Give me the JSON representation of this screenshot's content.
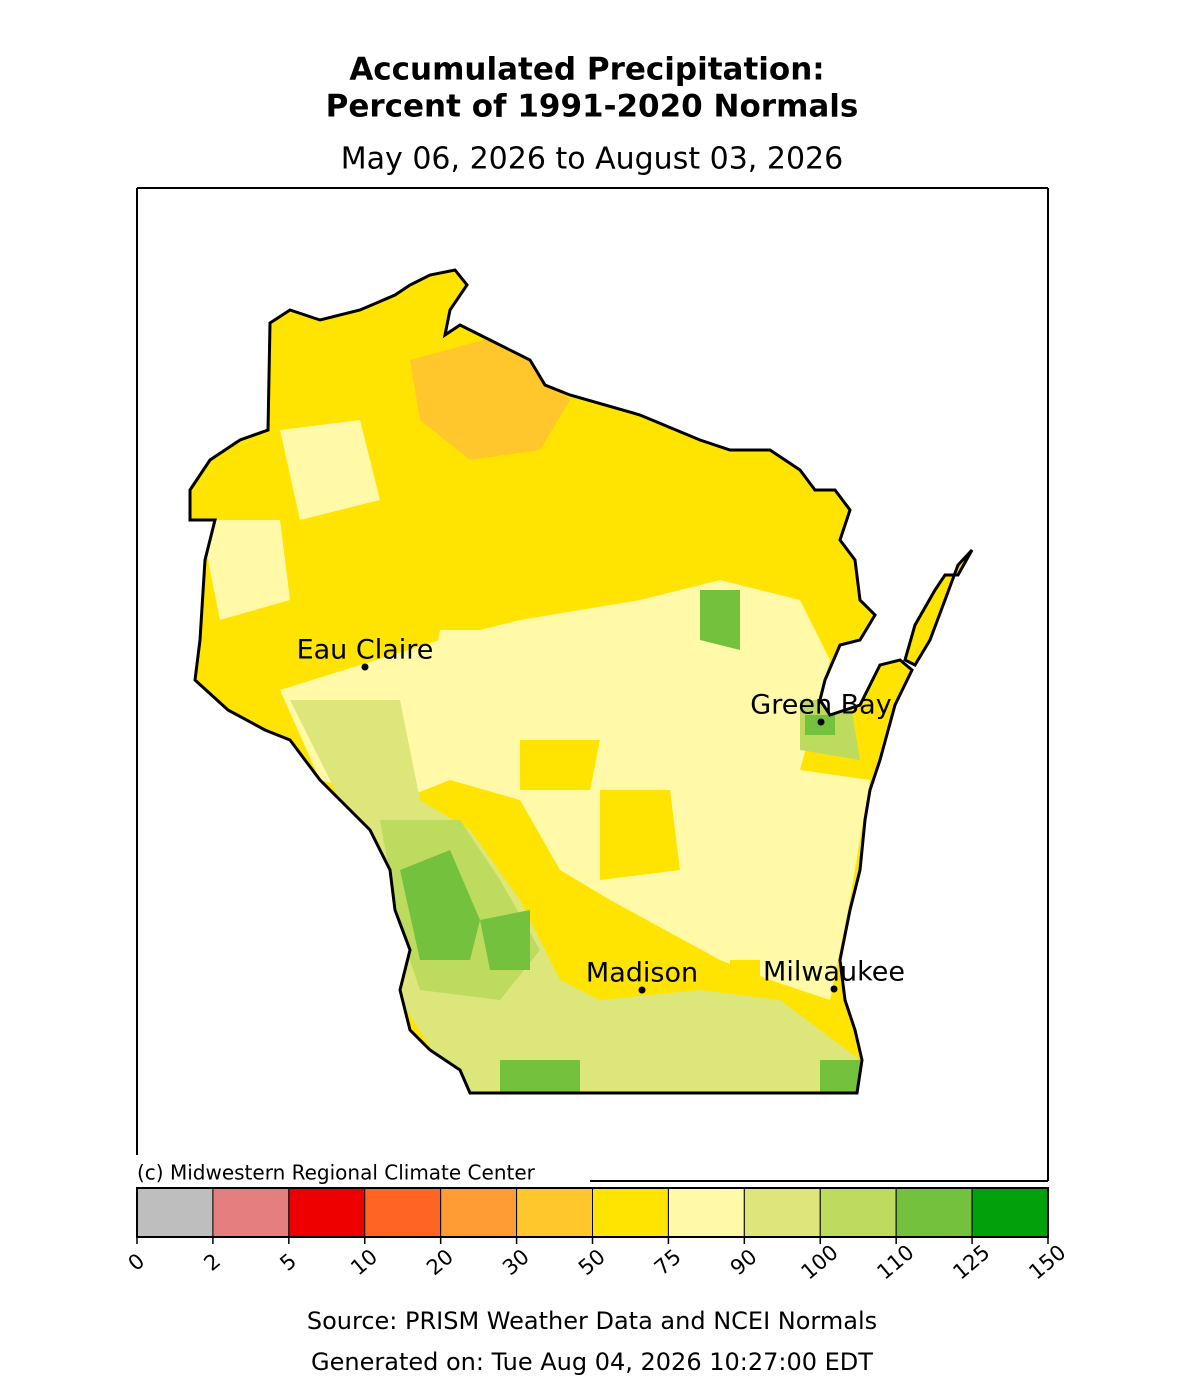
{
  "title": [
    "Accumulated Precipitation:",
    "Percent of 1991-2020 Normals"
  ],
  "subtitle": "May 06, 2026 to August 03, 2026",
  "cities": [
    "Eau Claire",
    "Green Bay",
    "Madison",
    "Milwaukee"
  ],
  "copyright": "(c) Midwestern Regional Climate Center",
  "colorbar": {
    "bounds": [
      0,
      2,
      5,
      10,
      20,
      30,
      50,
      75,
      90,
      100,
      110,
      125,
      150
    ],
    "colors": [
      "#bebebe",
      "#e57f7f",
      "#ee0000",
      "#ff6422",
      "#ff9c33",
      "#ffc72c",
      "#fee400",
      "#fff9a8",
      "#dce67b",
      "#bcdb5f",
      "#73c13d",
      "#00a10b"
    ]
  },
  "source": "Source: PRISM Weather Data and NCEI Normals",
  "generated": "Generated on: Tue Aug 04, 2026 10:27:00 EDT"
}
